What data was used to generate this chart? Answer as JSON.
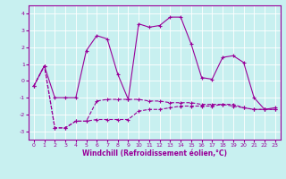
{
  "xlabel": "Windchill (Refroidissement éolien,°C)",
  "background_color": "#c8f0f0",
  "line_color": "#990099",
  "grid_color": "#ffffff",
  "xlim": [
    -0.5,
    23.5
  ],
  "ylim": [
    -3.5,
    4.5
  ],
  "xticks": [
    0,
    1,
    2,
    3,
    4,
    5,
    6,
    7,
    8,
    9,
    10,
    11,
    12,
    13,
    14,
    15,
    16,
    17,
    18,
    19,
    20,
    21,
    22,
    23
  ],
  "yticks": [
    -3,
    -2,
    -1,
    0,
    1,
    2,
    3,
    4
  ],
  "series1_x": [
    0,
    1,
    2,
    3,
    4,
    5,
    6,
    7,
    8,
    9,
    10,
    11,
    12,
    13,
    14,
    15,
    16,
    17,
    18,
    19,
    20,
    21,
    22,
    23
  ],
  "series1_y": [
    -0.3,
    0.9,
    -1.0,
    -1.0,
    -1.0,
    1.8,
    2.7,
    2.5,
    0.4,
    -1.1,
    3.4,
    3.2,
    3.3,
    3.8,
    3.8,
    2.2,
    0.2,
    0.1,
    1.4,
    1.5,
    1.1,
    -1.0,
    -1.7,
    -1.6
  ],
  "series2_x": [
    0,
    1,
    2,
    3,
    4,
    5,
    6,
    7,
    8,
    9,
    10,
    11,
    12,
    13,
    14,
    15,
    16,
    17,
    18,
    19,
    20,
    21,
    22,
    23
  ],
  "series2_y": [
    -0.3,
    0.9,
    -2.8,
    -2.8,
    -2.4,
    -2.4,
    -1.2,
    -1.1,
    -1.1,
    -1.1,
    -1.1,
    -1.2,
    -1.2,
    -1.3,
    -1.3,
    -1.3,
    -1.4,
    -1.4,
    -1.4,
    -1.5,
    -1.6,
    -1.7,
    -1.7,
    -1.7
  ],
  "series3_x": [
    0,
    1,
    2,
    3,
    4,
    5,
    6,
    7,
    8,
    9,
    10,
    11,
    12,
    13,
    14,
    15,
    16,
    17,
    18,
    19,
    20,
    21,
    22,
    23
  ],
  "series3_y": [
    -0.3,
    0.9,
    -2.8,
    -2.8,
    -2.4,
    -2.4,
    -2.3,
    -2.3,
    -2.3,
    -2.3,
    -1.8,
    -1.7,
    -1.7,
    -1.6,
    -1.5,
    -1.5,
    -1.5,
    -1.5,
    -1.4,
    -1.4,
    -1.6,
    -1.7,
    -1.7,
    -1.7
  ],
  "tick_fontsize": 4.5,
  "xlabel_fontsize": 5.5,
  "marker_size": 3,
  "linewidth": 0.8
}
